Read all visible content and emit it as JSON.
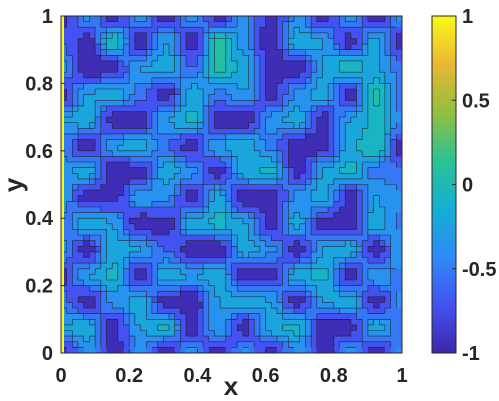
{
  "chart_data": {
    "type": "heatmap",
    "subtype": "filled-contour",
    "xlabel": "x",
    "ylabel": "y",
    "xlim": [
      0,
      1
    ],
    "ylim": [
      0,
      1
    ],
    "x_ticks": [
      "0",
      "0.2",
      "0.4",
      "0.6",
      "0.8",
      "1"
    ],
    "y_ticks": [
      "0",
      "0.2",
      "0.4",
      "0.6",
      "0.8",
      "1"
    ],
    "colorbar": {
      "colormap": "parula",
      "range": [
        -1,
        1
      ],
      "ticks": [
        "1",
        "0.5",
        "0",
        "-0.5",
        "-1"
      ],
      "stops": [
        "#3e26a8",
        "#4353f2",
        "#2e8af6",
        "#13b0d4",
        "#2bc294",
        "#92bf3f",
        "#e9b634",
        "#f9fb15"
      ]
    },
    "field": {
      "description_of_values": "blocky random field, values mostly between -1 and 0.1, boundary x=0 near +1",
      "base_grid": [
        [
          -0.9,
          -0.4,
          -0.9,
          -0.4,
          -0.9,
          -0.4,
          -0.9,
          -0.4,
          -0.9,
          -0.4,
          -0.9,
          -0.4,
          -0.9,
          -0.4
        ],
        [
          -0.6,
          -0.9,
          0.0,
          -0.9,
          -0.3,
          -0.9,
          0.05,
          -0.4,
          -0.95,
          -0.2,
          -0.3,
          -0.9,
          -0.2,
          -0.9
        ],
        [
          -0.4,
          -0.95,
          -0.9,
          -0.3,
          -0.2,
          -0.6,
          0.05,
          -0.2,
          -0.9,
          -0.95,
          -0.3,
          0.0,
          -0.3,
          -0.5
        ],
        [
          -0.9,
          -0.3,
          -0.2,
          -0.5,
          -0.9,
          -0.2,
          -0.5,
          -0.3,
          -0.9,
          -0.4,
          -0.2,
          -0.9,
          0.05,
          -0.6
        ],
        [
          -0.3,
          -0.2,
          -0.9,
          -0.95,
          -0.3,
          -0.1,
          -0.9,
          -0.95,
          -0.4,
          -0.2,
          -0.9,
          -0.3,
          -0.1,
          -0.4
        ],
        [
          -0.5,
          -0.9,
          -0.3,
          -0.2,
          -0.6,
          -0.9,
          -0.3,
          -0.2,
          -0.5,
          -0.95,
          -0.9,
          -0.2,
          0.0,
          -0.9
        ],
        [
          -0.4,
          -0.2,
          -0.95,
          -0.9,
          -0.2,
          -0.4,
          -0.9,
          -0.2,
          -0.1,
          -0.9,
          -0.3,
          -0.1,
          -0.5,
          -0.6
        ],
        [
          -0.3,
          -0.9,
          -0.9,
          -0.3,
          -0.4,
          -0.9,
          -0.2,
          -0.95,
          -0.9,
          -0.4,
          -0.2,
          -0.9,
          -0.3,
          -0.4
        ],
        [
          -0.6,
          -0.2,
          -0.3,
          -0.95,
          -0.9,
          -0.2,
          -0.1,
          -0.3,
          -0.9,
          -0.2,
          -0.9,
          -0.95,
          -0.2,
          -0.5
        ],
        [
          -0.4,
          -0.9,
          -0.2,
          -0.3,
          -0.6,
          -0.9,
          -0.95,
          -0.2,
          -0.4,
          -0.9,
          -0.3,
          -0.2,
          -0.9,
          -0.3
        ],
        [
          -0.9,
          -0.3,
          -0.1,
          -0.9,
          -0.2,
          -0.3,
          -0.2,
          -0.9,
          -0.9,
          -0.2,
          -0.1,
          -0.9,
          -0.3,
          -0.5
        ],
        [
          -0.5,
          -0.9,
          -0.4,
          -0.2,
          -0.9,
          -0.95,
          -0.3,
          -0.2,
          -0.3,
          -0.9,
          -0.3,
          -0.2,
          -0.9,
          -0.4
        ],
        [
          -0.3,
          -0.2,
          -0.9,
          -0.3,
          -0.1,
          -0.9,
          -0.3,
          -0.9,
          -0.2,
          -0.1,
          -0.9,
          -0.9,
          -0.2,
          -0.6
        ],
        [
          -0.9,
          -0.4,
          -0.9,
          -0.4,
          -0.9,
          -0.4,
          -0.9,
          -0.4,
          -0.9,
          -0.4,
          -0.9,
          -0.4,
          -0.9,
          -0.4
        ]
      ],
      "boundary_left_value": 1.0
    }
  }
}
